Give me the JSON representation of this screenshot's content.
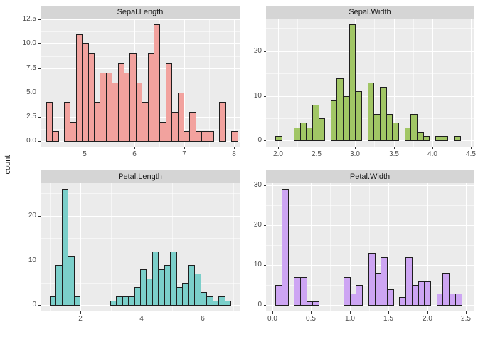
{
  "figure": {
    "y_axis_title": "count"
  },
  "style": {
    "panel_background": "#EBEBEB",
    "strip_background": "#D5D5D5",
    "gridline_color": "#FFFFFF",
    "bar_outline": "#1F1F1F",
    "tick_label_color": "#4D4D4D"
  },
  "chart_data": {
    "type": "bar",
    "subtype": "faceted-histograms",
    "ylabel": "count",
    "grid": "on",
    "facets": [
      {
        "title": "Sepal.Length",
        "fill": "#F2A29E",
        "bin_start": 4.23,
        "bin_width": 0.12,
        "counts": [
          4,
          1,
          0,
          4,
          2,
          11,
          10,
          9,
          4,
          7,
          7,
          6,
          8,
          7,
          9,
          6,
          4,
          9,
          12,
          2,
          8,
          3,
          5,
          1,
          3,
          1,
          1,
          1,
          0,
          4,
          0,
          1
        ],
        "x_range": [
          4.12,
          8.12
        ],
        "y_range": [
          -0.6,
          12.6
        ],
        "x_ticks": {
          "values": [
            5,
            6,
            7,
            8
          ],
          "labels": [
            "5",
            "6",
            "7",
            "8"
          ],
          "minor": [
            4.5,
            5.5,
            6.5,
            7.5
          ]
        },
        "y_ticks": {
          "values": [
            0,
            2.5,
            5,
            7.5,
            10,
            12.5
          ],
          "labels": [
            "0.0",
            "2.5",
            "5.0",
            "7.5",
            "10.0",
            "12.5"
          ],
          "minor": [
            1.25,
            3.75,
            6.25,
            8.75,
            11.25
          ]
        }
      },
      {
        "title": "Sepal.Width",
        "fill": "#A1C665",
        "bin_start": 1.96,
        "bin_width": 0.08,
        "counts": [
          1,
          0,
          0,
          3,
          4,
          3,
          8,
          5,
          0,
          9,
          14,
          10,
          26,
          11,
          0,
          13,
          6,
          12,
          6,
          4,
          0,
          3,
          6,
          2,
          1,
          0,
          1,
          1,
          0,
          1
        ],
        "x_range": [
          1.84,
          4.54
        ],
        "y_range": [
          -1.365,
          27.3
        ],
        "x_ticks": {
          "values": [
            2.0,
            2.5,
            3.0,
            3.5,
            4.0,
            4.5
          ],
          "labels": [
            "2.0",
            "2.5",
            "3.0",
            "3.5",
            "4.0",
            "4.5"
          ],
          "minor": [
            2.25,
            2.75,
            3.25,
            3.75,
            4.25
          ]
        },
        "y_ticks": {
          "values": [
            0,
            10,
            20
          ],
          "labels": [
            "0",
            "10",
            "20"
          ],
          "minor": [
            5,
            15,
            25
          ]
        }
      },
      {
        "title": "Petal.Length",
        "fill": "#7BCFCA",
        "bin_start": 1.0,
        "bin_width": 0.196667,
        "counts": [
          2,
          9,
          26,
          11,
          2,
          0,
          0,
          0,
          0,
          0,
          1,
          2,
          2,
          2,
          4,
          8,
          6,
          12,
          8,
          9,
          12,
          4,
          5,
          9,
          7,
          3,
          2,
          1,
          2,
          1
        ],
        "x_range": [
          0.7,
          7.2
        ],
        "y_range": [
          -1.365,
          27.3
        ],
        "x_ticks": {
          "values": [
            2,
            4,
            6
          ],
          "labels": [
            "2",
            "4",
            "6"
          ],
          "minor": [
            1,
            3,
            5,
            7
          ]
        },
        "y_ticks": {
          "values": [
            0,
            10,
            20
          ],
          "labels": [
            "0",
            "10",
            "20"
          ],
          "minor": [
            5,
            15,
            25
          ]
        }
      },
      {
        "title": "Petal.Width",
        "fill": "#CDA5F3",
        "bin_start": 0.04,
        "bin_width": 0.08,
        "counts": [
          5,
          29,
          0,
          7,
          7,
          1,
          1,
          0,
          0,
          0,
          0,
          7,
          3,
          5,
          0,
          13,
          8,
          12,
          4,
          0,
          2,
          12,
          5,
          6,
          6,
          0,
          3,
          8,
          3,
          3
        ],
        "x_range": [
          -0.08,
          2.6
        ],
        "y_range": [
          -1.52,
          30.45
        ],
        "x_ticks": {
          "values": [
            0.0,
            0.5,
            1.0,
            1.5,
            2.0,
            2.5
          ],
          "labels": [
            "0.0",
            "0.5",
            "1.0",
            "1.5",
            "2.0",
            "2.5"
          ],
          "minor": [
            0.25,
            0.75,
            1.25,
            1.75,
            2.25
          ]
        },
        "y_ticks": {
          "values": [
            0,
            10,
            20,
            30
          ],
          "labels": [
            "0",
            "10",
            "20",
            "30"
          ],
          "minor": [
            5,
            15,
            25
          ]
        }
      }
    ]
  }
}
